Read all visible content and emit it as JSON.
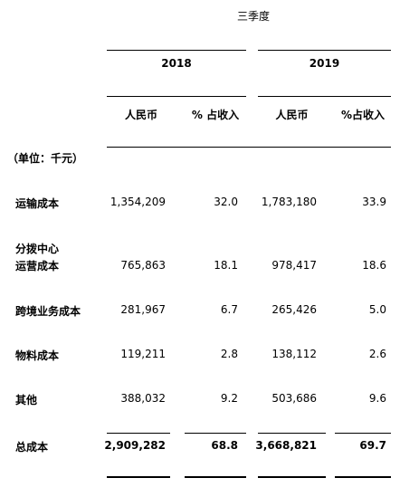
{
  "table": {
    "period_header": "三季度",
    "years": [
      "2018",
      "2019"
    ],
    "col_headers": {
      "rmb": "人民币",
      "pct_2018": "% 占收入",
      "pct_2019": "%占收入"
    },
    "unit_label": "（单位：千元）",
    "rows": [
      {
        "label": "运输成本",
        "rmb_2018": "1,354,209",
        "pct_2018": "32.0",
        "rmb_2019": "1,783,180",
        "pct_2019": "33.9"
      },
      {
        "label_line1": "分拨中心",
        "label_line2": "运营成本",
        "rmb_2018": "765,863",
        "pct_2018": "18.1",
        "rmb_2019": "978,417",
        "pct_2019": "18.6"
      },
      {
        "label": "跨境业务成本",
        "rmb_2018": "281,967",
        "pct_2018": "6.7",
        "rmb_2019": "265,426",
        "pct_2019": "5.0"
      },
      {
        "label": "物料成本",
        "rmb_2018": "119,211",
        "pct_2018": "2.8",
        "rmb_2019": "138,112",
        "pct_2019": "2.6"
      },
      {
        "label": "其他",
        "rmb_2018": "388,032",
        "pct_2018": "9.2",
        "rmb_2019": "503,686",
        "pct_2019": "9.6"
      }
    ],
    "total": {
      "label": "总成本",
      "rmb_2018": "2,909,282",
      "pct_2018": "68.8",
      "rmb_2019": "3,668,821",
      "pct_2019": "69.7"
    }
  }
}
